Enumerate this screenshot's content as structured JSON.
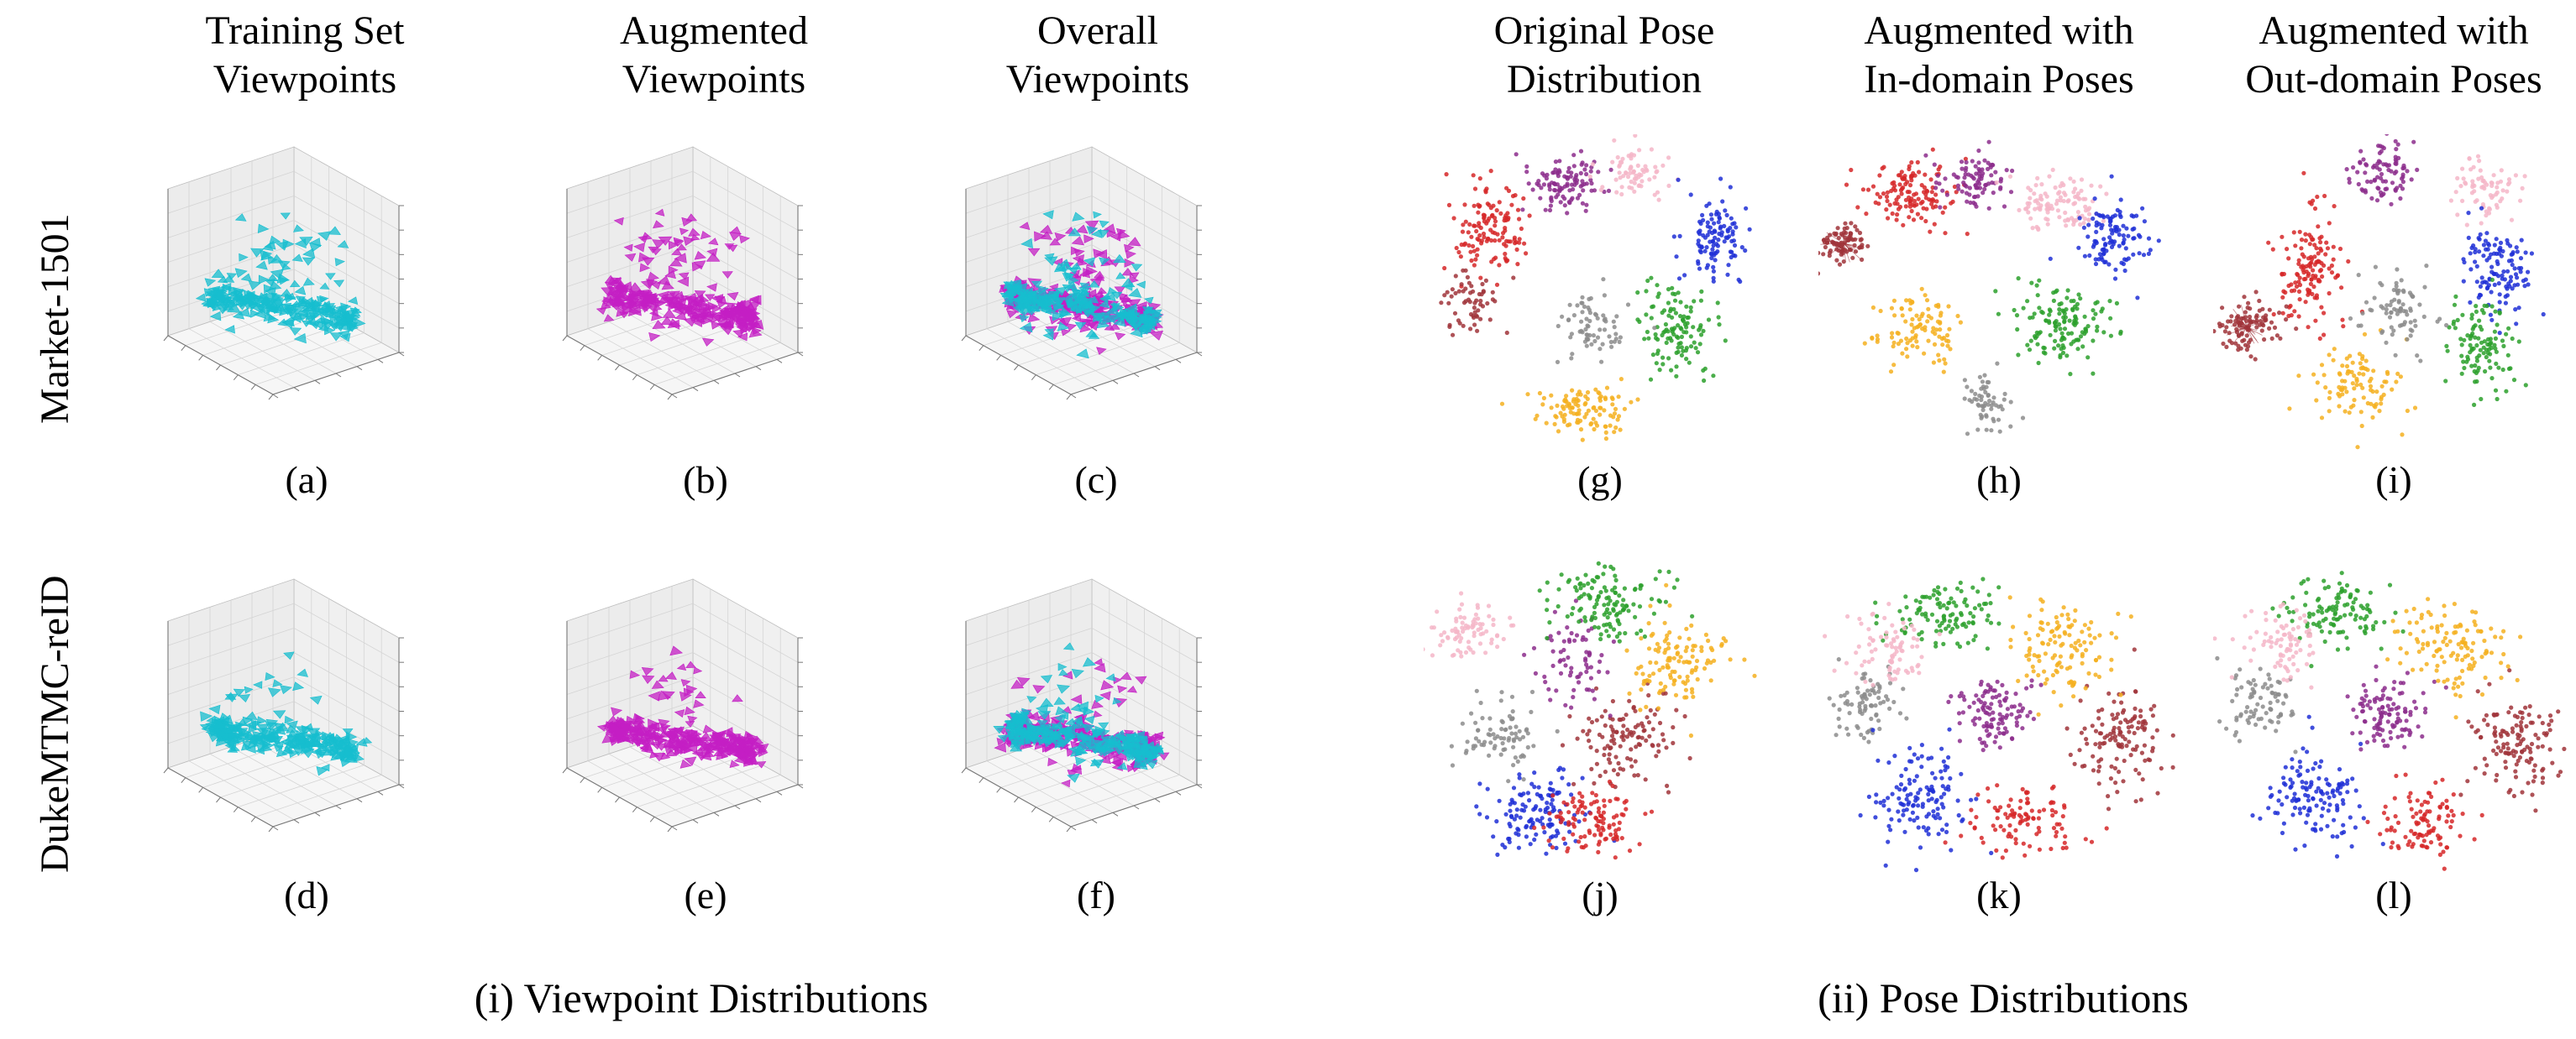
{
  "rows": [
    "Market-1501",
    "DukeMTMC-reID"
  ],
  "panels": [
    {
      "id": "a",
      "title": [
        "Training Set",
        "Viewpoints"
      ],
      "label": "(a)"
    },
    {
      "id": "b",
      "title": [
        "Augmented",
        "Viewpoints"
      ],
      "label": "(b)"
    },
    {
      "id": "c",
      "title": [
        "Overall",
        "Viewpoints"
      ],
      "label": "(c)"
    },
    {
      "id": "g",
      "title": [
        "Original Pose",
        "Distribution"
      ],
      "label": "(g)"
    },
    {
      "id": "h",
      "title": [
        "Augmented with",
        "In-domain Poses"
      ],
      "label": "(h)"
    },
    {
      "id": "i",
      "title": [
        "Augmented with",
        "Out-domain Poses"
      ],
      "label": "(i)"
    },
    {
      "id": "d",
      "label": "(d)"
    },
    {
      "id": "e",
      "label": "(e)"
    },
    {
      "id": "f",
      "label": "(f)"
    },
    {
      "id": "j",
      "label": "(j)"
    },
    {
      "id": "k",
      "label": "(k)"
    },
    {
      "id": "l",
      "label": "(l)"
    }
  ],
  "captions": {
    "left": "(i) Viewpoint Distributions",
    "right": "(ii) Pose Distributions"
  },
  "colors": {
    "training": "#17becf",
    "augmented": "#c41fc4",
    "clusters": [
      "#d62728",
      "#8c2d8c",
      "#f4b6c8",
      "#1f2fd6",
      "#2ca02c",
      "#f5b020",
      "#8c8c8c",
      "#a0343a"
    ]
  },
  "chart_data": [
    {
      "type": "scatter",
      "panel": "a",
      "dataset": "Market-1501",
      "series": [
        {
          "color": "#17becf"
        }
      ]
    },
    {
      "type": "scatter",
      "panel": "b",
      "dataset": "Market-1501",
      "series": [
        {
          "color": "#c41fc4"
        }
      ]
    },
    {
      "type": "scatter",
      "panel": "c",
      "dataset": "Market-1501",
      "series": [
        {
          "color": "#c41fc4"
        },
        {
          "color": "#17becf"
        }
      ]
    },
    {
      "type": "scatter",
      "panel": "d",
      "dataset": "DukeMTMC-reID",
      "series": [
        {
          "color": "#17becf"
        }
      ]
    },
    {
      "type": "scatter",
      "panel": "e",
      "dataset": "DukeMTMC-reID",
      "series": [
        {
          "color": "#c41fc4"
        }
      ]
    },
    {
      "type": "scatter",
      "panel": "f",
      "dataset": "DukeMTMC-reID",
      "series": [
        {
          "color": "#c41fc4"
        },
        {
          "color": "#17becf"
        }
      ]
    },
    {
      "type": "scatter",
      "panel": "g",
      "dataset": "Market-1501",
      "clusters": 8
    },
    {
      "type": "scatter",
      "panel": "h",
      "dataset": "Market-1501",
      "clusters": 8
    },
    {
      "type": "scatter",
      "panel": "i",
      "dataset": "Market-1501",
      "clusters": 8
    },
    {
      "type": "scatter",
      "panel": "j",
      "dataset": "DukeMTMC-reID",
      "clusters": 8
    },
    {
      "type": "scatter",
      "panel": "k",
      "dataset": "DukeMTMC-reID",
      "clusters": 8
    },
    {
      "type": "scatter",
      "panel": "l",
      "dataset": "DukeMTMC-reID",
      "clusters": 8
    }
  ]
}
